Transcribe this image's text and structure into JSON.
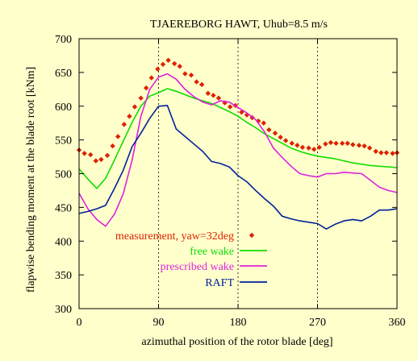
{
  "chart_data": {
    "type": "line",
    "title": "TJAEREBORG HAWT,  Uhub=8.5 m/s",
    "xlabel": "azimuthal position of the rotor blade [deg]",
    "ylabel": "flapwise bending moment at the blade root [kNm]",
    "xlim": [
      0,
      360
    ],
    "ylim": [
      300,
      700
    ],
    "xticks": [
      0,
      90,
      180,
      270,
      360
    ],
    "yticks": [
      300,
      350,
      400,
      450,
      500,
      550,
      600,
      650,
      700
    ],
    "xtick_labels": [
      "0",
      "90",
      "180",
      "270",
      "360"
    ],
    "ytick_labels": [
      "300",
      "350",
      "400",
      "450",
      "500",
      "550",
      "600",
      "650",
      "700"
    ],
    "grid": {
      "vertical_dashed_at": [
        90,
        180,
        270
      ]
    },
    "legend_position": "lower-center",
    "series": [
      {
        "name": "measurement, yaw=32deg",
        "style": "markers",
        "marker": "diamond",
        "color": "#dd2200",
        "x": [
          0,
          6,
          13,
          19,
          25,
          32,
          38,
          44,
          51,
          57,
          63,
          70,
          76,
          82,
          89,
          95,
          101,
          108,
          114,
          120,
          127,
          133,
          139,
          146,
          152,
          158,
          165,
          171,
          177,
          184,
          190,
          196,
          203,
          209,
          215,
          222,
          228,
          234,
          241,
          247,
          253,
          260,
          266,
          272,
          279,
          285,
          291,
          298,
          304,
          310,
          317,
          323,
          329,
          336,
          342,
          348,
          355,
          360
        ],
        "y": [
          535,
          530,
          528,
          519,
          521,
          527,
          541,
          555,
          573,
          585,
          599,
          612,
          627,
          642,
          655,
          662,
          668,
          663,
          659,
          648,
          646,
          636,
          632,
          619,
          616,
          612,
          605,
          599,
          601,
          591,
          587,
          583,
          578,
          575,
          565,
          560,
          554,
          549,
          545,
          542,
          539,
          538,
          536,
          539,
          544,
          546,
          545,
          545,
          545,
          543,
          542,
          541,
          538,
          533,
          531,
          531,
          530,
          531
        ]
      },
      {
        "name": "free wake",
        "style": "line",
        "color": "#11dd00",
        "x": [
          0,
          10,
          20,
          30,
          40,
          50,
          60,
          70,
          80,
          90,
          100,
          110,
          120,
          130,
          140,
          150,
          160,
          170,
          180,
          190,
          200,
          210,
          220,
          230,
          240,
          250,
          260,
          270,
          280,
          290,
          300,
          310,
          320,
          330,
          340,
          350,
          360
        ],
        "y": [
          507,
          492,
          478,
          493,
          520,
          548,
          576,
          600,
          615,
          620,
          626,
          622,
          617,
          612,
          608,
          604,
          598,
          592,
          585,
          576,
          568,
          559,
          552,
          545,
          538,
          533,
          529,
          526,
          524,
          522,
          519,
          516,
          514,
          512,
          511,
          510,
          509
        ]
      },
      {
        "name": "prescribed wake",
        "style": "line",
        "color": "#dd22dd",
        "x": [
          0,
          10,
          20,
          30,
          40,
          50,
          60,
          70,
          80,
          90,
          100,
          110,
          120,
          130,
          140,
          150,
          160,
          170,
          180,
          190,
          200,
          210,
          220,
          230,
          240,
          250,
          260,
          270,
          280,
          290,
          300,
          310,
          320,
          330,
          340,
          350,
          360
        ],
        "y": [
          471,
          448,
          432,
          422,
          440,
          470,
          520,
          585,
          625,
          643,
          648,
          640,
          625,
          614,
          606,
          602,
          608,
          606,
          598,
          590,
          580,
          562,
          538,
          524,
          511,
          500,
          497,
          495,
          500,
          500,
          502,
          501,
          500,
          490,
          480,
          475,
          472
        ]
      },
      {
        "name": "RAFT",
        "style": "line",
        "color": "#002299",
        "x": [
          0,
          10,
          20,
          30,
          40,
          50,
          60,
          70,
          80,
          90,
          100,
          110,
          120,
          130,
          140,
          150,
          160,
          170,
          180,
          190,
          200,
          210,
          220,
          230,
          240,
          250,
          260,
          270,
          280,
          290,
          300,
          310,
          320,
          330,
          340,
          350,
          360
        ],
        "y": [
          441,
          444,
          448,
          453,
          478,
          505,
          540,
          560,
          582,
          600,
          601,
          566,
          555,
          544,
          533,
          518,
          515,
          510,
          497,
          488,
          475,
          463,
          452,
          437,
          433,
          430,
          428,
          426,
          418,
          425,
          430,
          432,
          430,
          437,
          446,
          446,
          448
        ]
      }
    ]
  }
}
